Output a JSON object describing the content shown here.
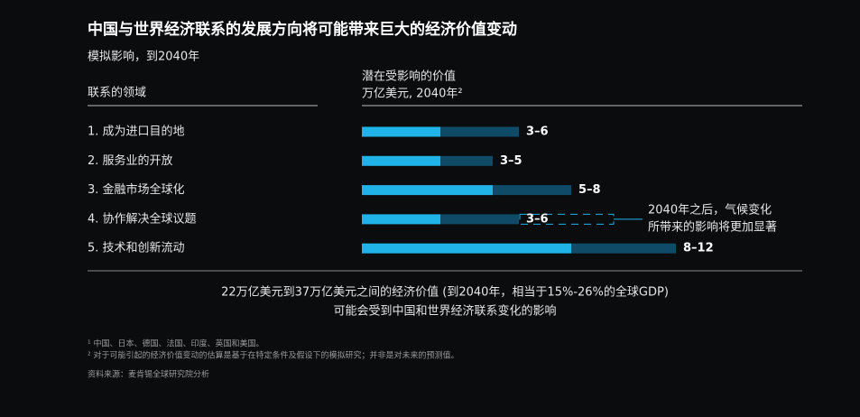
{
  "chart_data": {
    "type": "range-bar",
    "title": "中国与世界经济联系的发展方向将可能带来巨大的经济价值变动",
    "subtitle": "模拟影响，到2040年",
    "category_header": "联系的领域",
    "value_header": [
      "潜在受影响的价值",
      "万亿美元, 2040年²"
    ],
    "categories": [
      "1. 成为进口目的地",
      "2. 服务业的开放",
      "3. 金融市场全球化",
      "4. 协作解决全球议题",
      "5. 技术和创新流动"
    ],
    "low": [
      3,
      3,
      5,
      3,
      8
    ],
    "high": [
      6,
      5,
      8,
      6,
      12
    ],
    "value_labels": [
      "3–6",
      "3–5",
      "5–8",
      "3–6",
      "8–12"
    ],
    "dashed": [
      false,
      false,
      false,
      true,
      false
    ],
    "low_color": "#1fb3e8",
    "high_color": "#0f4a66",
    "annotation": {
      "row": 3,
      "lines": [
        "2040年之后，气候变化",
        "所带来的影响将更加显著"
      ]
    },
    "summary": [
      "22万亿美元到37万亿美元之间的经济价值 (到2040年，相当于15%-26%的全球GDP)",
      "可能会受到中国和世界经济联系变化的影响"
    ],
    "footnotes": [
      "¹  中国、日本、德国、法国、印度、英国和美国。",
      "²  对于可能引起的经济价值变动的估算是基于在特定条件及假设下的模拟研究；并非是对未来的预测值。"
    ],
    "source": "资料来源：麦肯锡全球研究院分析"
  }
}
